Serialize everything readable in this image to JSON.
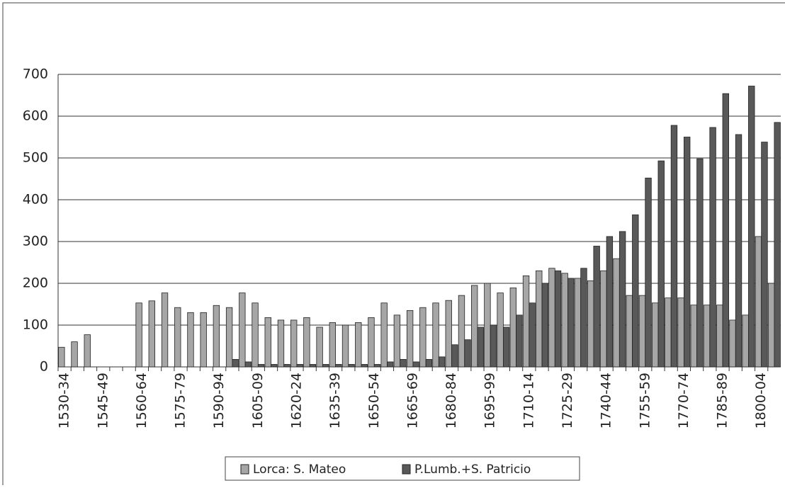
{
  "chart_data": {
    "type": "bar",
    "categories": [
      "1530-34",
      null,
      null,
      "1545-49",
      null,
      null,
      "1560-64",
      null,
      null,
      "1575-79",
      null,
      null,
      "1590-94",
      null,
      null,
      "1605-09",
      null,
      null,
      "1620-24",
      null,
      null,
      "1635-39",
      null,
      null,
      "1650-54",
      null,
      null,
      "1665-69",
      null,
      null,
      "1680-84",
      null,
      null,
      "1695-99",
      null,
      null,
      "1710-14",
      null,
      null,
      "1725-29",
      null,
      null,
      "1740-44",
      null,
      null,
      "1755-59",
      null,
      null,
      "1770-74",
      null,
      null,
      "1785-89",
      null,
      null,
      "1800-04",
      null
    ],
    "series": [
      {
        "name": "Lorca: S. Mateo",
        "color": "#a6a6a6",
        "values": [
          47,
          60,
          77,
          0,
          0,
          0,
          153,
          158,
          177,
          142,
          130,
          130,
          147,
          142,
          177,
          153,
          118,
          112,
          112,
          118,
          95,
          106,
          100,
          106,
          118,
          153,
          124,
          135,
          142,
          153,
          159,
          171,
          195,
          200,
          177,
          189,
          218,
          230,
          236,
          224,
          212,
          206,
          230,
          259,
          171,
          171,
          153,
          165,
          165,
          148,
          148,
          148,
          112,
          124,
          312,
          200
        ]
      },
      {
        "name": "P.Lumb.+S. Patricio",
        "color": "#595959",
        "values": [
          0,
          0,
          0,
          0,
          0,
          0,
          0,
          0,
          0,
          0,
          0,
          0,
          0,
          18,
          12,
          6,
          6,
          6,
          6,
          6,
          6,
          6,
          6,
          6,
          6,
          12,
          18,
          12,
          18,
          24,
          53,
          65,
          95,
          100,
          95,
          124,
          153,
          200,
          230,
          212,
          236,
          289,
          312,
          324,
          364,
          452,
          493,
          578,
          550,
          498,
          573,
          654,
          556,
          672,
          538,
          585
        ]
      }
    ],
    "ylim": [
      0,
      700
    ],
    "yticks": [
      0,
      100,
      200,
      300,
      400,
      500,
      600,
      700
    ],
    "grid": true,
    "legend": "bottom"
  }
}
